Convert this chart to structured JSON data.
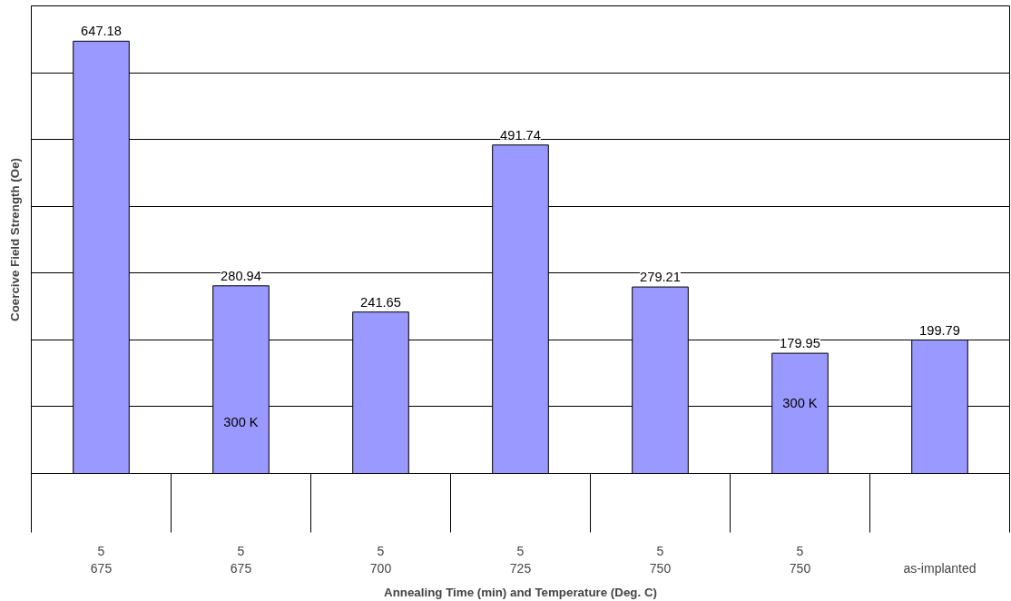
{
  "chart_data": {
    "type": "bar",
    "xlabel": "Annealing Time (min) and Temperature (Deg. C)",
    "ylabel": "Coercive Field Strength (Oe)",
    "categories": [
      "5\n675",
      "5\n675",
      "5\n700",
      "5\n725",
      "5\n750",
      "5\n750",
      "\nas-implanted"
    ],
    "values": [
      647.18,
      280.94,
      241.65,
      491.74,
      279.21,
      179.95,
      199.79
    ],
    "color": "#9999ff",
    "data_labels": true,
    "grid": "y",
    "tick_labels": "x",
    "ylim": [
      0,
      700
    ],
    "yticks": [
      {
        "value": 0,
        "label": null
      },
      {
        "value": 100,
        "label": null
      },
      {
        "value": 200,
        "label": null
      },
      {
        "value": 300,
        "label": null
      },
      {
        "value": 400,
        "label": null
      },
      {
        "value": 500,
        "label": null
      },
      {
        "value": 600,
        "label": null
      },
      {
        "value": 700,
        "label": null
      }
    ],
    "annotations": [
      "300 K",
      "300 K"
    ]
  }
}
